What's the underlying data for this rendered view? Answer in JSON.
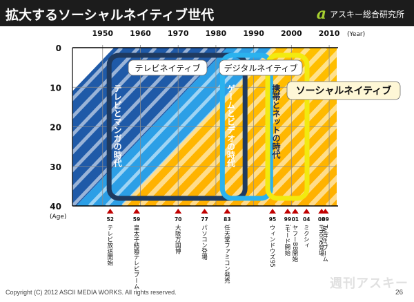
{
  "header": {
    "title": "拡大するソーシャルネイティブ世代",
    "brand_logo": "a",
    "brand_name": "アスキー総合研究所"
  },
  "footer": {
    "copyright": "Copyright (C) 2012 ASCII MEDIA WORKS. All rights reserved.",
    "page_number": "26",
    "watermark": "週刊アスキー"
  },
  "chart_data": {
    "type": "timeline-diagram",
    "x_unit_label": "(Year)",
    "y_unit_label": "(Age)",
    "xlim": [
      1942,
      2012
    ],
    "ylim": [
      0,
      40
    ],
    "x_ticks": [
      1950,
      1960,
      1970,
      1980,
      1990,
      2000,
      2010
    ],
    "y_ticks": [
      0,
      10,
      20,
      30,
      40
    ],
    "generations": [
      {
        "name": "テレビネイティブ",
        "era_label": "テレビとマンガの時代",
        "start": 1953,
        "color": "#1f3a5f"
      },
      {
        "name": "デジタルネイティブ",
        "era_label": "ゲームとビデオの時代",
        "start": 1983,
        "color": "#2bb2ee"
      },
      {
        "name": "ソーシャルネイティブ",
        "era_label": "携帯とネットの時代",
        "start": 1995,
        "color": "#f2ea10"
      }
    ],
    "events": [
      {
        "year_label": "52",
        "year": 1952,
        "label": "テレビ放送開始"
      },
      {
        "year_label": "59",
        "year": 1959,
        "label": "皇太子結婚テレビブーム"
      },
      {
        "year_label": "70",
        "year": 1970,
        "label": "大阪万国博"
      },
      {
        "year_label": "77",
        "year": 1977,
        "label": "パソコン登場"
      },
      {
        "year_label": "83",
        "year": 1983,
        "label": "任天堂ファミコン発売"
      },
      {
        "year_label": "95",
        "year": 1995,
        "label": "ウィンドウズ95"
      },
      {
        "year_label": "99",
        "year": 1999,
        "label": "iモード開始"
      },
      {
        "year_label": "01",
        "year": 2001,
        "label": "ヤフーBB開始"
      },
      {
        "year_label": "04",
        "year": 2004,
        "label": "ミクシィ"
      },
      {
        "year_label": "08",
        "year": 2008,
        "label": "iPhone登場"
      },
      {
        "year_label": "09",
        "year": 2009,
        "label": "Twitterブーム"
      }
    ]
  }
}
